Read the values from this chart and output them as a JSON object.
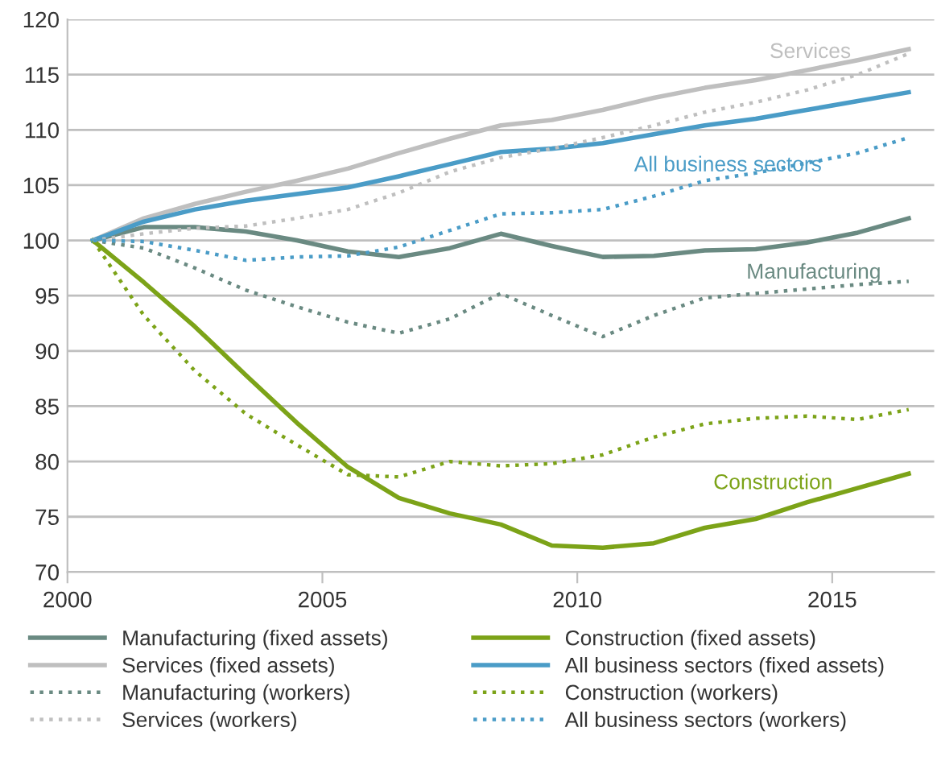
{
  "chart_data": {
    "type": "line",
    "x": [
      2000.5,
      2001.5,
      2002.5,
      2003.5,
      2004.5,
      2005.5,
      2006.5,
      2007.5,
      2008.5,
      2009.5,
      2010.5,
      2011.5,
      2012.5,
      2013.5,
      2014.5,
      2015.5,
      2016.5
    ],
    "series": [
      {
        "name": "Manufacturing (fixed assets)",
        "color": "#6a8a82",
        "line_style": "solid",
        "values": [
          100,
          101.2,
          101.2,
          100.8,
          100,
          99,
          98.5,
          99.3,
          100.6,
          99.5,
          98.5,
          98.6,
          99.1,
          99.2,
          99.8,
          100.7,
          102
        ]
      },
      {
        "name": "Construction (fixed assets)",
        "color": "#7ca318",
        "line_style": "solid",
        "values": [
          100,
          96.2,
          92.2,
          87.8,
          83.5,
          79.5,
          76.7,
          75.3,
          74.3,
          72.4,
          72.2,
          72.6,
          74,
          74.8,
          76.3,
          77.6,
          78.9
        ]
      },
      {
        "name": "Services (fixed assets)",
        "color": "#bfbfbf",
        "line_style": "solid",
        "values": [
          100,
          102,
          103.3,
          104.4,
          105.4,
          106.5,
          107.9,
          109.2,
          110.4,
          110.9,
          111.8,
          112.9,
          113.8,
          114.5,
          115.4,
          116.3,
          117.3
        ]
      },
      {
        "name": "All business sectors (fixed assets)",
        "color": "#4a9cc7",
        "line_style": "solid",
        "values": [
          100,
          101.7,
          102.8,
          103.6,
          104.2,
          104.8,
          105.8,
          106.9,
          108,
          108.3,
          108.8,
          109.6,
          110.4,
          111,
          111.8,
          112.6,
          113.4
        ]
      },
      {
        "name": "Manufacturing (workers)",
        "color": "#6a8a82",
        "line_style": "dotted",
        "values": [
          100,
          99.3,
          97.5,
          95.5,
          94,
          92.6,
          91.6,
          92.9,
          95.2,
          93.2,
          91.3,
          93.2,
          94.8,
          95.2,
          95.6,
          96,
          96.3
        ]
      },
      {
        "name": "Construction (workers)",
        "color": "#7ca318",
        "line_style": "dotted",
        "values": [
          100,
          93.2,
          88.2,
          84.3,
          81.5,
          78.8,
          78.6,
          80,
          79.6,
          79.8,
          80.6,
          82.2,
          83.4,
          83.9,
          84.1,
          83.8,
          84.7
        ]
      },
      {
        "name": "Services (workers)",
        "color": "#bfbfbf",
        "line_style": "dotted",
        "values": [
          100,
          100.6,
          101.1,
          101.3,
          102,
          102.8,
          104.3,
          106.2,
          107.5,
          108.3,
          109.3,
          110.4,
          111.6,
          112.5,
          113.6,
          115,
          116.9
        ]
      },
      {
        "name": "All business sectors (workers)",
        "color": "#4a9cc7",
        "line_style": "dotted",
        "values": [
          100,
          99.9,
          99.1,
          98.2,
          98.5,
          98.6,
          99.4,
          100.9,
          102.4,
          102.5,
          102.8,
          104,
          105.4,
          106.1,
          107,
          107.9,
          109.3
        ]
      }
    ],
    "annotations": [
      "Services",
      "All business sectors",
      "Manufacturing",
      "Construction"
    ],
    "xlim": [
      2000,
      2017
    ],
    "xticks": [
      2000,
      2005,
      2010,
      2015
    ],
    "ylim": [
      70,
      120
    ],
    "yticks": [
      70,
      75,
      80,
      85,
      90,
      95,
      100,
      105,
      110,
      115,
      120
    ],
    "grid": "y",
    "legend": "bottom",
    "marker": "none"
  }
}
